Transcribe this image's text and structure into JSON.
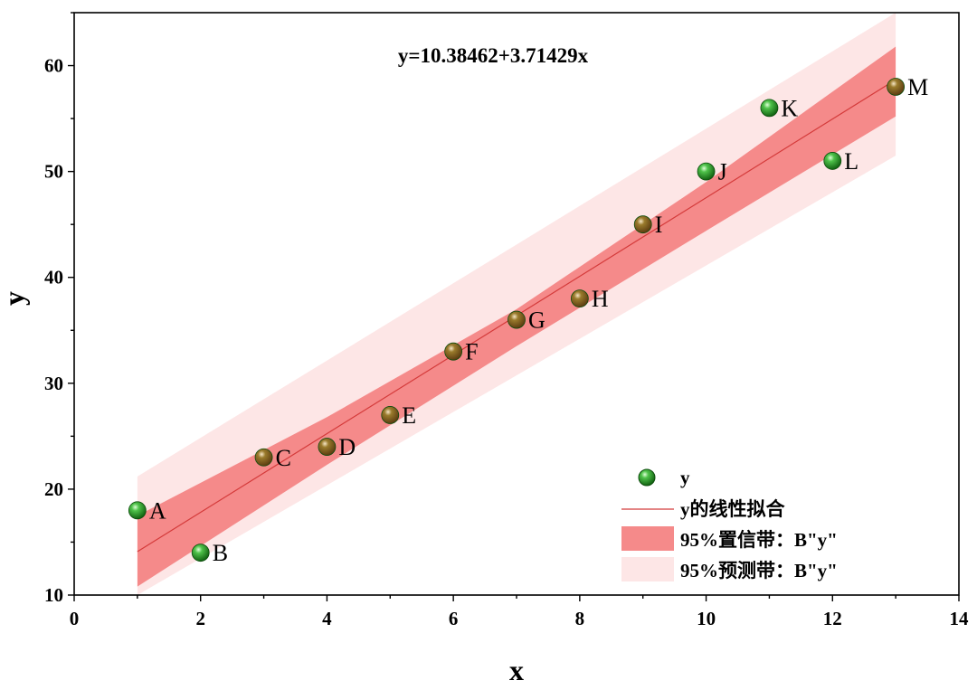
{
  "chart_data": {
    "type": "scatter",
    "title": "y=10.38462+3.71429x",
    "xlabel": "x",
    "ylabel": "y",
    "xlim": [
      0,
      14
    ],
    "ylim": [
      10,
      65
    ],
    "x_ticks": [
      "0",
      "2",
      "4",
      "6",
      "8",
      "10",
      "12",
      "14"
    ],
    "y_ticks": [
      "10",
      "20",
      "30",
      "40",
      "50",
      "60"
    ],
    "points": [
      {
        "label": "A",
        "x": 1,
        "y": 18
      },
      {
        "label": "B",
        "x": 2,
        "y": 14
      },
      {
        "label": "C",
        "x": 3,
        "y": 23
      },
      {
        "label": "D",
        "x": 4,
        "y": 24
      },
      {
        "label": "E",
        "x": 5,
        "y": 27
      },
      {
        "label": "F",
        "x": 6,
        "y": 33
      },
      {
        "label": "G",
        "x": 7,
        "y": 36
      },
      {
        "label": "H",
        "x": 8,
        "y": 38
      },
      {
        "label": "I",
        "x": 9,
        "y": 45
      },
      {
        "label": "J",
        "x": 10,
        "y": 50
      },
      {
        "label": "K",
        "x": 11,
        "y": 56
      },
      {
        "label": "L",
        "x": 12,
        "y": 51
      },
      {
        "label": "M",
        "x": 13,
        "y": 58
      }
    ],
    "fit": {
      "intercept": 10.38462,
      "slope": 3.71429,
      "x_range": [
        1,
        13
      ]
    },
    "confidence_band_95": {
      "x": [
        1,
        4,
        7,
        10,
        13
      ],
      "lower": [
        10.8,
        22.3,
        33.5,
        44.4,
        55.2
      ],
      "upper": [
        17.5,
        26.8,
        37.0,
        49.0,
        61.8
      ]
    },
    "prediction_band_95": {
      "x": [
        1,
        13
      ],
      "lower": [
        7.0,
        51.5
      ],
      "upper": [
        21.2,
        65.0
      ]
    },
    "legend": {
      "position": "bottom-right",
      "entries": [
        "y",
        "y的线性拟合",
        "95%置信带：B\"y\"",
        "95%预测带：B\"y\""
      ]
    },
    "colors": {
      "point_fill": "#1e8a1e",
      "point_edge": "#0d4d0d",
      "fit_line": "#d43a3a",
      "confidence_band": "#f58a8a",
      "prediction_band": "#fde6e6"
    }
  }
}
